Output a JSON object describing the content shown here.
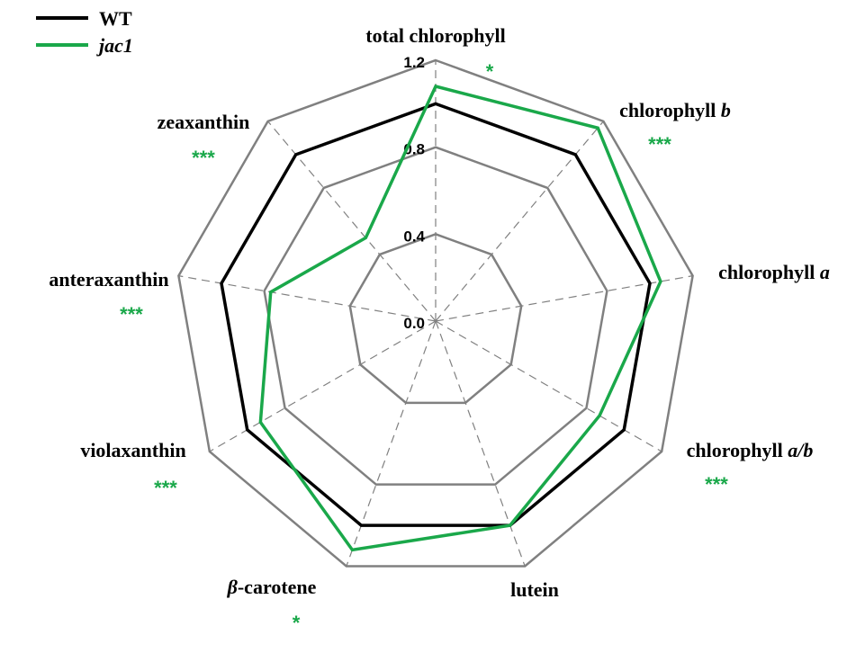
{
  "chart_data": {
    "type": "radar",
    "axes": [
      {
        "name": "total chlorophyll",
        "plain": "total chlorophyll",
        "italic": "",
        "significance": "*"
      },
      {
        "name": "chlorophyll b",
        "plain": "chlorophyll ",
        "italic": "b",
        "significance": "***"
      },
      {
        "name": "chlorophyll a",
        "plain": "chlorophyll ",
        "italic": "a",
        "significance": ""
      },
      {
        "name": "chlorophyll a/b",
        "plain": "chlorophyll ",
        "italic": "a/b",
        "significance": "***"
      },
      {
        "name": "lutein",
        "plain": "lutein",
        "italic": "",
        "significance": ""
      },
      {
        "name": "β-carotene",
        "plain": "-carotene",
        "italic": "β",
        "italic_first": true,
        "significance": "*"
      },
      {
        "name": "violaxanthin",
        "plain": "violaxanthin",
        "italic": "",
        "significance": "***"
      },
      {
        "name": "anteraxanthin",
        "plain": "anteraxanthin",
        "italic": "",
        "significance": "***"
      },
      {
        "name": "zeaxanthin",
        "plain": "zeaxanthin",
        "italic": "",
        "significance": "***"
      }
    ],
    "series": [
      {
        "name": "WT",
        "italic": false,
        "color": "#000000",
        "values": [
          1.0,
          1.0,
          1.0,
          1.0,
          1.0,
          1.0,
          1.0,
          1.0,
          1.0
        ]
      },
      {
        "name": "jac1",
        "italic": true,
        "color": "#1aa84a",
        "values": [
          1.08,
          1.16,
          1.05,
          0.87,
          1.0,
          1.12,
          0.93,
          0.77,
          0.5
        ]
      }
    ],
    "rlim": [
      0,
      1.2
    ],
    "grid_rings": [
      0.4,
      0.8,
      1.2
    ],
    "tick_labels": [
      "0.0",
      "0.4",
      "0.8",
      "1.2"
    ],
    "significance_color": "#1aa84a",
    "grid_color": "#808080",
    "legend_position": "top-left"
  }
}
